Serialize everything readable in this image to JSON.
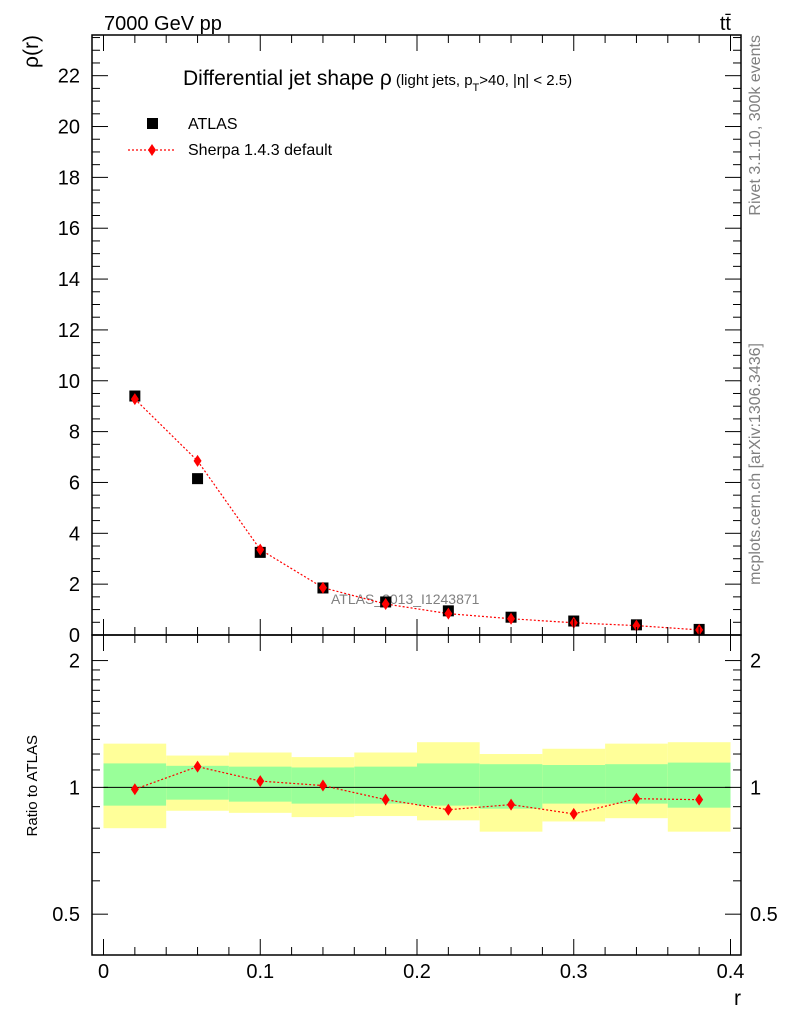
{
  "header": {
    "energy_label": "7000 GeV pp",
    "process_label": "tt̄",
    "side_text_top": "Rivet 3.1.10,  300k events",
    "side_text_bottom": "mcplots.cern.ch [arXiv:1306.3436]",
    "watermark": "ATLAS_2013_I1243871"
  },
  "chart_data": [
    {
      "type": "scatter",
      "title": "Differential jet shape ρ (light jets, pT>40, |η| < 2.5)",
      "title_main": "Differential jet shape ρ",
      "title_sub_a": "(light jets, p",
      "title_sub_T": "T",
      "title_sub_b": ">40, |η| < 2.5)",
      "xlabel": "r",
      "ylabel": "ρ(r)",
      "xlim": [
        0,
        0.4
      ],
      "ylim": [
        0,
        23.6
      ],
      "x_ticks": [
        0,
        0.1,
        0.2,
        0.3,
        0.4
      ],
      "x_tick_labels": [
        "0",
        "0.1",
        "0.2",
        "0.3",
        "0.4"
      ],
      "y_ticks": [
        0,
        2,
        4,
        6,
        8,
        10,
        12,
        14,
        16,
        18,
        20,
        22
      ],
      "y_tick_labels": [
        "0",
        "2",
        "4",
        "6",
        "8",
        "10",
        "12",
        "14",
        "16",
        "18",
        "20",
        "22"
      ],
      "x_edges": [
        0.0,
        0.04,
        0.08,
        0.12,
        0.16,
        0.2,
        0.24,
        0.28,
        0.32,
        0.36,
        0.4
      ],
      "x": [
        0.02,
        0.06,
        0.1,
        0.14,
        0.18,
        0.22,
        0.26,
        0.3,
        0.34,
        0.38
      ],
      "legend_position": "top-left",
      "series": [
        {
          "name": "ATLAS",
          "marker": "square",
          "color": "#000000",
          "values": [
            9.4,
            6.15,
            3.25,
            1.85,
            1.3,
            0.95,
            0.7,
            0.55,
            0.4,
            0.22
          ]
        },
        {
          "name": "Sherpa 1.4.3 default",
          "marker": "diamond",
          "line": "dotted",
          "color": "#ff0000",
          "values": [
            9.28,
            6.85,
            3.36,
            1.86,
            1.22,
            0.84,
            0.64,
            0.48,
            0.37,
            0.2
          ]
        }
      ]
    },
    {
      "type": "band",
      "ylabel": "Ratio to ATLAS",
      "xlabel": "r",
      "xlim": [
        0,
        0.4
      ],
      "ylim": [
        0.4,
        2.3
      ],
      "y_scale": "log",
      "y_ticks": [
        0.5,
        1,
        2
      ],
      "y_tick_labels": [
        "0.5",
        "1",
        "2"
      ],
      "x_edges": [
        0.0,
        0.04,
        0.08,
        0.12,
        0.16,
        0.2,
        0.24,
        0.28,
        0.32,
        0.36,
        0.4
      ],
      "stat_band": {
        "color": "#99ff99",
        "lo": [
          0.905,
          0.935,
          0.925,
          0.915,
          0.915,
          0.905,
          0.89,
          0.915,
          0.915,
          0.895
        ],
        "hi": [
          1.14,
          1.125,
          1.12,
          1.115,
          1.12,
          1.14,
          1.135,
          1.13,
          1.135,
          1.145
        ]
      },
      "syst_band": {
        "color": "#ffff99",
        "lo": [
          0.8,
          0.88,
          0.87,
          0.85,
          0.855,
          0.835,
          0.785,
          0.83,
          0.845,
          0.785
        ],
        "hi": [
          1.27,
          1.19,
          1.21,
          1.18,
          1.21,
          1.28,
          1.2,
          1.235,
          1.27,
          1.28
        ]
      },
      "series": [
        {
          "name": "Sherpa 1.4.3 default",
          "marker": "diamond",
          "line": "dotted",
          "color": "#ff0000",
          "values": [
            0.99,
            1.12,
            1.035,
            1.01,
            0.935,
            0.885,
            0.91,
            0.865,
            0.94,
            0.935
          ]
        }
      ]
    }
  ]
}
